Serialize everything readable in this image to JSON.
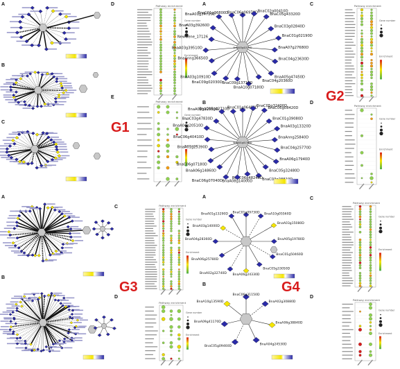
{
  "groups": [
    {
      "label": "G1",
      "panels": [
        "A",
        "B",
        "C",
        "D",
        "E"
      ]
    },
    {
      "label": "G2",
      "panels": [
        "A",
        "B",
        "C",
        "D"
      ]
    },
    {
      "label": "G3",
      "panels": [
        "A",
        "B",
        "C",
        "D"
      ]
    },
    {
      "label": "G4",
      "panels": [
        "A",
        "B",
        "C",
        "D"
      ]
    }
  ],
  "enrichment_title": "Pathway enrichment",
  "legend": {
    "gene_number": "Gene number",
    "enrichment": "Enrichment"
  },
  "g2_network_a": {
    "hub": "BnaA03g41570D",
    "nodes": [
      "BnaC06g06970D",
      "BnaC02g00410D",
      "BnaC05g43320D",
      "BnaC03g02840D",
      "BnaC01g02190D",
      "BnaA07g27680D",
      "BnaC04g23630D",
      "BnaA05g47450D",
      "BnaC04g20360D",
      "BnaA10g07180D",
      "BnaC09g13710D",
      "BnaC09g02030D",
      "BnaA03g10910D",
      "BnaAnng36650D",
      "BnaA03g39510D",
      "NewGene_17126",
      "BnaA03g39260D",
      "BnaA01g34720D",
      "BnaC01g36800D"
    ]
  },
  "g2_network_b": {
    "hub": "BnaA01g01760D",
    "nodes": [
      "BnaC01g06460D",
      "BnaC05g32400D",
      "BnaC06g08420D",
      "BnaC01g39080D",
      "BnaA03g13320D",
      "BnaAnng25840D",
      "BnaC04g25770D",
      "BnaA06g17940D",
      "BnaC05g32480D",
      "BnaC03g28810D",
      "BnaC06g48240D",
      "BnaA08g14000D",
      "BnaC06g07040D",
      "BnaA06g14860D",
      "BnaC06g07180D",
      "BnaA01g25390D",
      "BnaC06g40410D",
      "BnaA04g20510D",
      "BnaC03g47830D",
      "BnaA02g12660D",
      "BnaC05g42710D"
    ]
  },
  "g4_network_a": {
    "nodes": [
      "BnaC01g09730D",
      "BnaA10g05560D",
      "BnaA03g15080D",
      "BnaA05g19780D",
      "BnaC01g50460D",
      "BnaC05g33050D",
      "BnaA06g24330D",
      "BnaA02g32740D",
      "BnaA06g25780D",
      "BnaA04g28360D",
      "BnaA03g14000D",
      "BnaA01g13290D"
    ]
  },
  "g4_network_b": {
    "nodes": [
      "BnaC06g31150D",
      "BnaA02g30880D",
      "BnaA06g38840D",
      "BnaA04g24530D",
      "BnaC05g09460D",
      "BnaA09g41170D",
      "BnaA10g13590D"
    ]
  },
  "colors": {
    "diamond": "#2a2aa8",
    "hub": "#c8c8c8",
    "highlight": "#f5e600",
    "red": "#d81b1b"
  }
}
